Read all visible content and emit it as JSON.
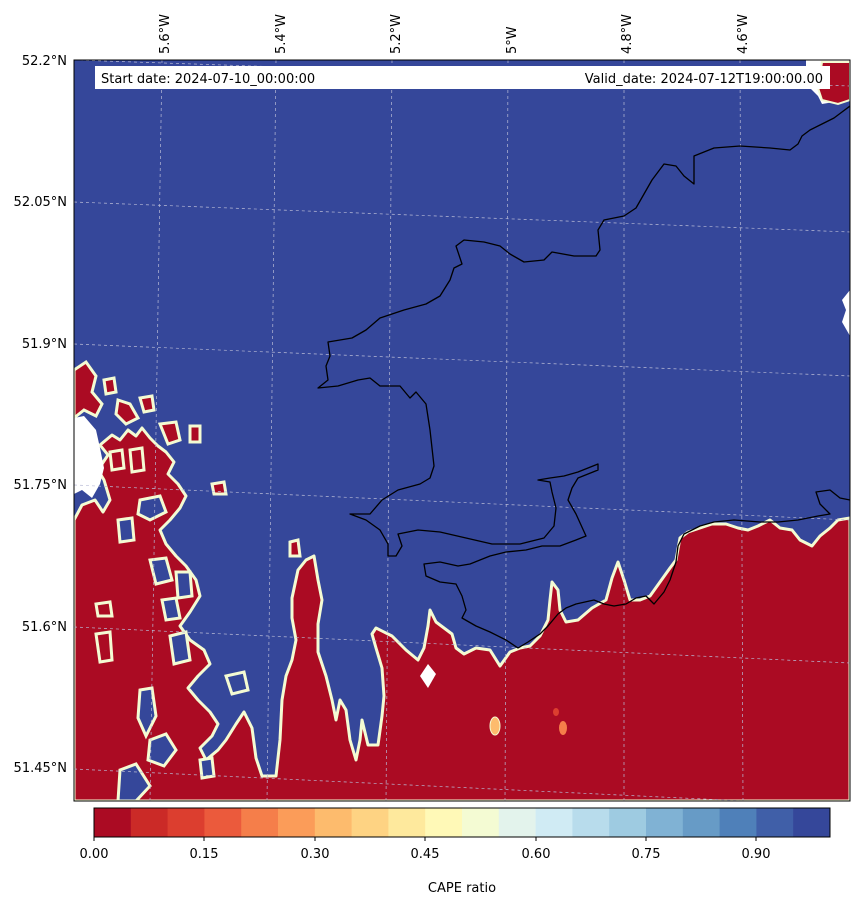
{
  "header": {
    "start_date": "Start date: 2024-07-10_00:00:00",
    "valid_date": "Valid_date: 2024-07-12T19:00:00.00"
  },
  "axes": {
    "lon_ticks": [
      "5.6°W",
      "5.4°W",
      "5.2°W",
      "5°W",
      "4.8°W",
      "4.6°W"
    ],
    "lat_ticks": [
      "52.2°N",
      "52.05°N",
      "51.9°N",
      "51.75°N",
      "51.6°N",
      "51.45°N"
    ]
  },
  "colorbar": {
    "label": "CAPE ratio",
    "tick_labels": [
      "0.00",
      "0.15",
      "0.30",
      "0.45",
      "0.60",
      "0.75",
      "0.90"
    ],
    "levels": 20,
    "min": 0.0,
    "max": 1.0
  },
  "colors": {
    "low": "#ab0b23",
    "high": "#35479a",
    "coastline": "#000000",
    "gridline": "#b9bbd6",
    "palette": [
      "#ab0b23",
      "#cb2a27",
      "#dc3e2f",
      "#eb5a3c",
      "#f57e4a",
      "#fb9c59",
      "#fdbb6d",
      "#fed383",
      "#fee99d",
      "#fff9b7",
      "#f4fbd3",
      "#e3f3ec",
      "#d0ebf4",
      "#b8dcec",
      "#9ecbe1",
      "#80b2d4",
      "#679bc6",
      "#4f80b9",
      "#405fa8",
      "#35479a"
    ]
  }
}
